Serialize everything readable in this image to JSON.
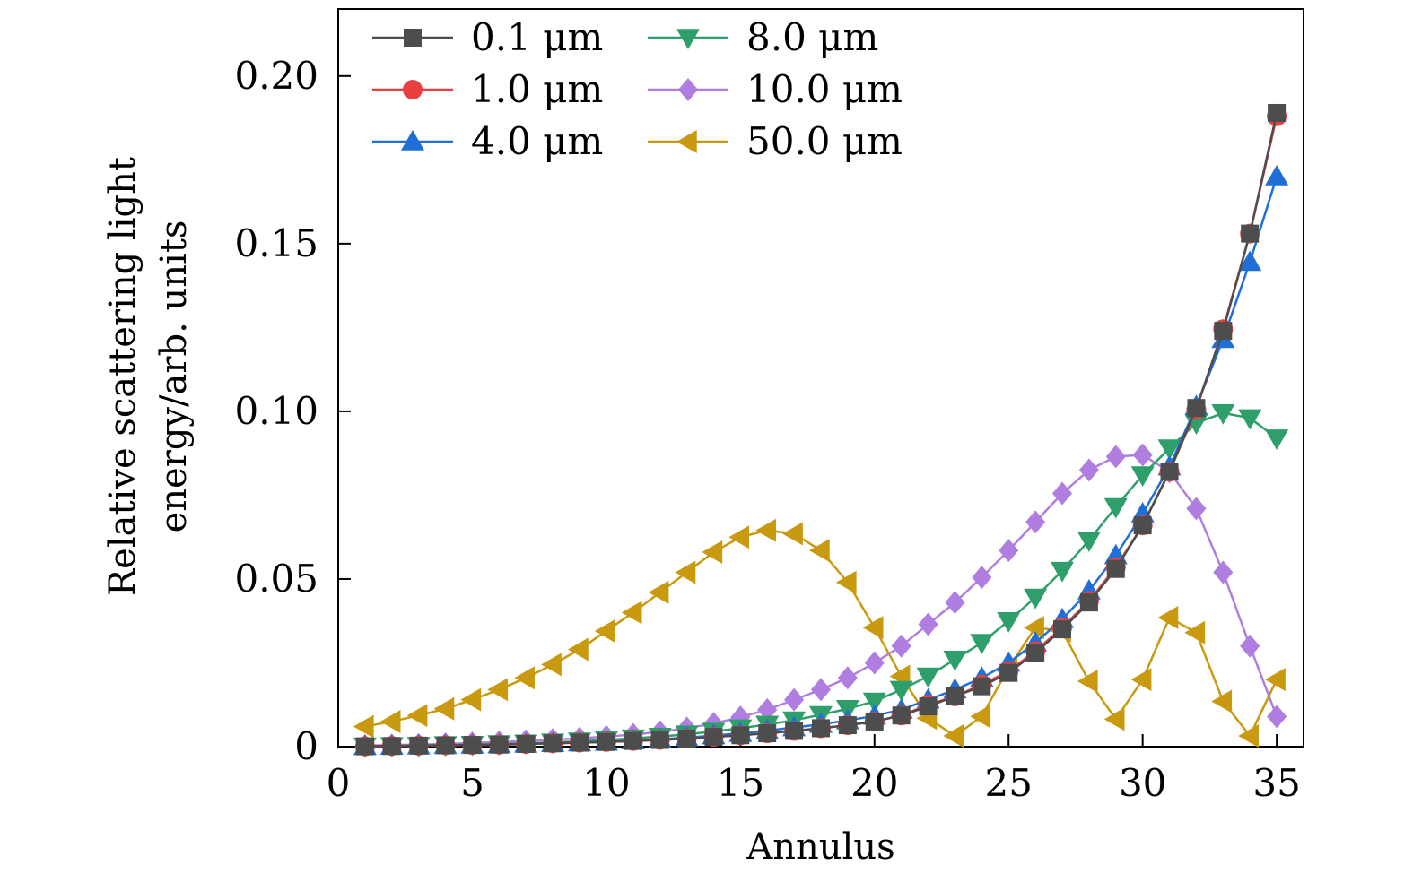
{
  "chart_data": {
    "type": "line",
    "xlabel": "Annulus",
    "ylabel_lines": [
      "Relative scattering light",
      "energy/arb. units"
    ],
    "xlim": [
      0,
      36
    ],
    "ylim": [
      0,
      0.22
    ],
    "xticks": [
      0,
      5,
      10,
      15,
      20,
      25,
      30,
      35
    ],
    "xtick_labels": [
      "0",
      "5",
      "10",
      "15",
      "20",
      "25",
      "30",
      "35"
    ],
    "yticks": [
      0,
      0.05,
      0.1,
      0.15,
      0.2
    ],
    "ytick_labels": [
      "0",
      "0.05",
      "0.10",
      "0.15",
      "0.20"
    ],
    "legend": {
      "position": "top-left",
      "columns": 2
    },
    "grid": false,
    "x": [
      1,
      2,
      3,
      4,
      5,
      6,
      7,
      8,
      9,
      10,
      11,
      12,
      13,
      14,
      15,
      16,
      17,
      18,
      19,
      20,
      21,
      22,
      23,
      24,
      25,
      26,
      27,
      28,
      29,
      30,
      31,
      32,
      33,
      34,
      35
    ],
    "series": [
      {
        "name": "0.1 μm",
        "color": "#4d4d4d",
        "marker": "square",
        "values": [
          0.0001,
          0.0002,
          0.0003,
          0.0004,
          0.0005,
          0.0006,
          0.0008,
          0.001,
          0.0012,
          0.0014,
          0.0017,
          0.002,
          0.0024,
          0.0029,
          0.0034,
          0.004,
          0.0047,
          0.0055,
          0.0064,
          0.0075,
          0.0093,
          0.012,
          0.015,
          0.018,
          0.022,
          0.028,
          0.035,
          0.043,
          0.053,
          0.066,
          0.082,
          0.101,
          0.124,
          0.153,
          0.189
        ]
      },
      {
        "name": "1.0 μm",
        "color": "#e84040",
        "marker": "circle",
        "values": [
          0.0001,
          0.0002,
          0.0003,
          0.0004,
          0.0005,
          0.0006,
          0.0008,
          0.001,
          0.0012,
          0.0014,
          0.0017,
          0.002,
          0.0024,
          0.0029,
          0.0034,
          0.004,
          0.0047,
          0.0055,
          0.0064,
          0.0075,
          0.0093,
          0.0125,
          0.015,
          0.0185,
          0.0225,
          0.0285,
          0.0355,
          0.0435,
          0.0535,
          0.066,
          0.082,
          0.1005,
          0.1245,
          0.153,
          0.188
        ]
      },
      {
        "name": "4.0 μm",
        "color": "#1f6fd6",
        "marker": "triangle-up",
        "values": [
          0.0001,
          0.0002,
          0.0003,
          0.0004,
          0.0005,
          0.0006,
          0.0008,
          0.001,
          0.0012,
          0.0014,
          0.0018,
          0.0022,
          0.0027,
          0.0033,
          0.004,
          0.0048,
          0.0057,
          0.0067,
          0.0078,
          0.0092,
          0.011,
          0.014,
          0.017,
          0.0205,
          0.025,
          0.031,
          0.038,
          0.0465,
          0.057,
          0.0695,
          0.0835,
          0.1015,
          0.1215,
          0.1445,
          0.17
        ]
      },
      {
        "name": "8.0 μm",
        "color": "#2e9e6a",
        "marker": "triangle-down",
        "values": [
          0.0001,
          0.0002,
          0.0003,
          0.0005,
          0.0006,
          0.0008,
          0.001,
          0.0013,
          0.0016,
          0.002,
          0.0025,
          0.003,
          0.0037,
          0.0045,
          0.0055,
          0.0066,
          0.0079,
          0.0095,
          0.0113,
          0.0135,
          0.017,
          0.021,
          0.026,
          0.031,
          0.0375,
          0.0445,
          0.0525,
          0.0615,
          0.0715,
          0.081,
          0.089,
          0.0965,
          0.0995,
          0.098,
          0.092
        ]
      },
      {
        "name": "10.0 μm",
        "color": "#b07ee0",
        "marker": "diamond",
        "values": [
          0.0003,
          0.0005,
          0.0006,
          0.0008,
          0.0011,
          0.0014,
          0.0017,
          0.0021,
          0.0025,
          0.003,
          0.0036,
          0.0044,
          0.0055,
          0.0069,
          0.0088,
          0.011,
          0.014,
          0.017,
          0.0205,
          0.025,
          0.03,
          0.0365,
          0.043,
          0.0505,
          0.0585,
          0.067,
          0.0755,
          0.0825,
          0.0865,
          0.087,
          0.082,
          0.071,
          0.052,
          0.03,
          0.009
        ]
      },
      {
        "name": "50.0 μm",
        "color": "#c99a10",
        "marker": "triangle-left",
        "values": [
          0.006,
          0.0075,
          0.0093,
          0.0113,
          0.014,
          0.017,
          0.0205,
          0.0245,
          0.029,
          0.0345,
          0.04,
          0.046,
          0.052,
          0.058,
          0.0625,
          0.0645,
          0.0635,
          0.0585,
          0.049,
          0.0355,
          0.021,
          0.0085,
          0.0032,
          0.009,
          0.0235,
          0.0355,
          0.0345,
          0.0195,
          0.0082,
          0.02,
          0.0385,
          0.034,
          0.0135,
          0.0032,
          0.02
        ]
      }
    ]
  }
}
